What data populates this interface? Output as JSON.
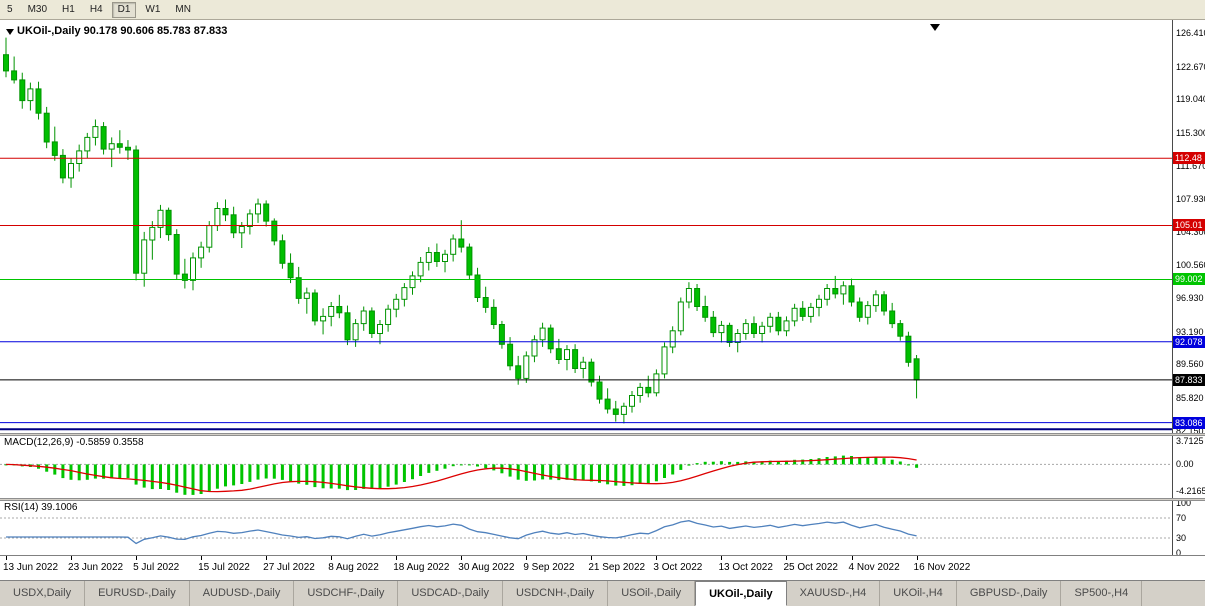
{
  "toolbar": {
    "buttons": [
      "5",
      "M30",
      "H1",
      "H4",
      "D1",
      "W1",
      "MN"
    ],
    "active": "D1"
  },
  "chart": {
    "title_text": "UKOil-,Daily  90.178 90.606 85.783 87.833",
    "symbol": "UKOil-,Daily"
  },
  "indicators": {
    "macd_label": "MACD(12,26,9) -0.5859 0.3558",
    "rsi_label": "RSI(14) 39.1006"
  },
  "colors": {
    "candle_up_fill": "#ffffff",
    "candle_down_fill": "#00bf00",
    "candle_border": "#009300",
    "macd_histogram": "#00c400",
    "macd_signal": "#dd0000",
    "rsi_line": "#4f81bd",
    "level_dotted": "#a8a8a8"
  },
  "chart_data": {
    "type": "candlestick",
    "symbol": "UKOil-,Daily",
    "last_ohlc": {
      "open": 90.178,
      "high": 90.606,
      "low": 85.783,
      "close": 87.833
    },
    "y_domain": [
      81.93,
      127.86
    ],
    "y_axis_ticks": [
      "126.410",
      "122.670",
      "119.040",
      "115.300",
      "111.670",
      "107.930",
      "104.300",
      "100.560",
      "96.930",
      "93.190",
      "89.560",
      "85.820",
      "82.150"
    ],
    "hlines": [
      {
        "price": 112.48,
        "label": "112.48",
        "color": "#d40000",
        "badge": true,
        "width": 1
      },
      {
        "price": 105.01,
        "label": "105.01",
        "color": "#d40000",
        "badge": true,
        "width": 1
      },
      {
        "price": 99.002,
        "label": "99.002",
        "color": "#00c400",
        "badge": true,
        "width": 1
      },
      {
        "price": 92.078,
        "label": "92.078",
        "color": "#0000dd",
        "badge": true,
        "width": 1
      },
      {
        "price": 87.833,
        "label": "87.833",
        "color": "#000000",
        "badge": true,
        "width": 1
      },
      {
        "price": 83.086,
        "label": "83.086",
        "color": "#0000dd",
        "badge": true,
        "width": 1
      },
      {
        "price": 82.35,
        "label": "",
        "color": "#000080",
        "badge": false,
        "width": 2
      }
    ],
    "candles": [
      [
        124.0,
        125.9,
        121.5,
        122.2
      ],
      [
        122.2,
        123.8,
        120.8,
        121.2
      ],
      [
        121.2,
        122.0,
        118.0,
        118.9
      ],
      [
        118.9,
        120.9,
        117.8,
        120.2
      ],
      [
        120.2,
        121.0,
        116.8,
        117.5
      ],
      [
        117.5,
        118.2,
        113.6,
        114.3
      ],
      [
        114.3,
        116.0,
        112.2,
        112.8
      ],
      [
        112.8,
        113.5,
        109.7,
        110.3
      ],
      [
        110.3,
        112.5,
        109.2,
        111.9
      ],
      [
        111.9,
        114.0,
        111.0,
        113.3
      ],
      [
        113.3,
        115.3,
        112.5,
        114.8
      ],
      [
        114.8,
        116.8,
        113.9,
        116.0
      ],
      [
        116.0,
        116.5,
        112.9,
        113.5
      ],
      [
        113.5,
        114.8,
        111.5,
        114.1
      ],
      [
        114.1,
        115.6,
        113.0,
        113.7
      ],
      [
        113.7,
        114.5,
        112.3,
        113.4
      ],
      [
        113.4,
        113.9,
        98.9,
        99.7
      ],
      [
        99.7,
        104.3,
        98.2,
        103.4
      ],
      [
        103.4,
        105.5,
        101.2,
        104.8
      ],
      [
        104.8,
        107.3,
        103.6,
        106.7
      ],
      [
        106.7,
        107.0,
        103.3,
        104.0
      ],
      [
        104.0,
        104.6,
        99.0,
        99.6
      ],
      [
        99.6,
        101.3,
        98.0,
        98.9
      ],
      [
        98.9,
        102.0,
        97.8,
        101.4
      ],
      [
        101.4,
        103.2,
        100.3,
        102.6
      ],
      [
        102.6,
        105.5,
        102.0,
        105.0
      ],
      [
        105.0,
        107.6,
        104.4,
        106.9
      ],
      [
        106.9,
        107.9,
        105.5,
        106.2
      ],
      [
        106.2,
        107.1,
        103.6,
        104.2
      ],
      [
        104.2,
        105.4,
        102.5,
        104.9
      ],
      [
        104.9,
        106.8,
        104.0,
        106.3
      ],
      [
        106.3,
        108.0,
        105.3,
        107.4
      ],
      [
        107.4,
        107.8,
        104.9,
        105.5
      ],
      [
        105.5,
        105.8,
        102.8,
        103.3
      ],
      [
        103.3,
        104.0,
        100.2,
        100.8
      ],
      [
        100.8,
        101.9,
        98.6,
        99.2
      ],
      [
        99.2,
        100.4,
        96.3,
        96.9
      ],
      [
        96.9,
        98.1,
        95.2,
        97.5
      ],
      [
        97.5,
        97.9,
        93.9,
        94.4
      ],
      [
        94.4,
        95.8,
        92.9,
        94.9
      ],
      [
        94.9,
        96.5,
        93.8,
        96.0
      ],
      [
        96.0,
        97.3,
        94.7,
        95.3
      ],
      [
        95.3,
        96.1,
        91.7,
        92.3
      ],
      [
        92.3,
        94.6,
        91.5,
        94.1
      ],
      [
        94.1,
        96.0,
        93.3,
        95.5
      ],
      [
        95.5,
        95.9,
        92.5,
        93.0
      ],
      [
        93.0,
        94.5,
        91.8,
        94.0
      ],
      [
        94.0,
        96.2,
        93.2,
        95.7
      ],
      [
        95.7,
        97.4,
        94.8,
        96.8
      ],
      [
        96.8,
        98.6,
        96.0,
        98.1
      ],
      [
        98.1,
        99.9,
        97.3,
        99.4
      ],
      [
        99.4,
        101.5,
        98.7,
        100.9
      ],
      [
        100.9,
        102.6,
        100.0,
        102.0
      ],
      [
        102.0,
        103.0,
        100.4,
        101.0
      ],
      [
        101.0,
        102.3,
        99.8,
        101.8
      ],
      [
        101.8,
        104.0,
        101.0,
        103.5
      ],
      [
        103.5,
        105.6,
        102.0,
        102.6
      ],
      [
        102.6,
        103.0,
        99.0,
        99.5
      ],
      [
        99.5,
        100.3,
        96.5,
        97.0
      ],
      [
        97.0,
        98.2,
        95.3,
        95.9
      ],
      [
        95.9,
        96.8,
        93.5,
        94.0
      ],
      [
        94.0,
        94.4,
        91.3,
        91.8
      ],
      [
        91.8,
        92.6,
        88.9,
        89.4
      ],
      [
        89.4,
        90.5,
        87.3,
        88.0
      ],
      [
        88.0,
        91.0,
        87.5,
        90.5
      ],
      [
        90.5,
        92.8,
        89.8,
        92.3
      ],
      [
        92.3,
        94.2,
        91.5,
        93.6
      ],
      [
        93.6,
        94.0,
        90.8,
        91.3
      ],
      [
        91.3,
        92.4,
        89.6,
        90.1
      ],
      [
        90.1,
        91.7,
        88.9,
        91.2
      ],
      [
        91.2,
        91.8,
        88.6,
        89.1
      ],
      [
        89.1,
        90.4,
        88.0,
        89.8
      ],
      [
        89.8,
        90.2,
        87.1,
        87.6
      ],
      [
        87.6,
        88.3,
        85.2,
        85.7
      ],
      [
        85.7,
        86.9,
        84.1,
        84.6
      ],
      [
        84.6,
        85.5,
        83.2,
        84.0
      ],
      [
        84.0,
        85.3,
        83.0,
        84.9
      ],
      [
        84.9,
        86.6,
        84.2,
        86.1
      ],
      [
        86.1,
        87.5,
        85.3,
        87.0
      ],
      [
        87.0,
        88.3,
        85.9,
        86.4
      ],
      [
        86.4,
        89.0,
        86.0,
        88.5
      ],
      [
        88.5,
        92.0,
        88.0,
        91.5
      ],
      [
        91.5,
        93.8,
        90.8,
        93.3
      ],
      [
        93.3,
        97.0,
        92.8,
        96.5
      ],
      [
        96.5,
        98.7,
        95.8,
        98.0
      ],
      [
        98.0,
        98.5,
        95.5,
        96.0
      ],
      [
        96.0,
        97.2,
        94.3,
        94.8
      ],
      [
        94.8,
        95.5,
        92.6,
        93.1
      ],
      [
        93.1,
        94.4,
        92.0,
        93.9
      ],
      [
        93.9,
        94.2,
        91.5,
        92.0
      ],
      [
        92.0,
        93.5,
        90.9,
        93.0
      ],
      [
        93.0,
        94.6,
        92.3,
        94.1
      ],
      [
        94.1,
        94.9,
        92.5,
        93.0
      ],
      [
        93.0,
        94.3,
        92.0,
        93.8
      ],
      [
        93.8,
        95.3,
        93.1,
        94.8
      ],
      [
        94.8,
        95.4,
        92.8,
        93.3
      ],
      [
        93.3,
        94.9,
        92.7,
        94.4
      ],
      [
        94.4,
        96.3,
        93.8,
        95.8
      ],
      [
        95.8,
        96.6,
        94.4,
        94.9
      ],
      [
        94.9,
        96.4,
        94.2,
        95.9
      ],
      [
        95.9,
        97.3,
        94.9,
        96.8
      ],
      [
        96.8,
        98.5,
        96.1,
        98.0
      ],
      [
        98.0,
        99.4,
        96.9,
        97.4
      ],
      [
        97.4,
        98.8,
        96.2,
        98.3
      ],
      [
        98.3,
        99.1,
        96.0,
        96.5
      ],
      [
        96.5,
        97.0,
        94.3,
        94.8
      ],
      [
        94.8,
        96.6,
        94.0,
        96.1
      ],
      [
        96.1,
        97.8,
        95.4,
        97.3
      ],
      [
        97.3,
        97.7,
        95.0,
        95.5
      ],
      [
        95.5,
        96.4,
        93.6,
        94.1
      ],
      [
        94.1,
        94.5,
        92.2,
        92.7
      ],
      [
        92.7,
        93.2,
        89.3,
        89.8
      ],
      [
        90.178,
        90.606,
        85.783,
        87.833
      ]
    ],
    "macd": {
      "params": "12,26,9",
      "value": -0.5859,
      "signal": 0.3558,
      "axis_ticks": [
        {
          "v": 3.7125,
          "t": "3.7125"
        },
        {
          "v": 0,
          "t": "0.00"
        },
        {
          "v": -4.2165,
          "t": "-4.2165"
        }
      ],
      "range": [
        4.5,
        -5.33
      ]
    },
    "rsi": {
      "params": "14",
      "value": 39.1006,
      "axis_ticks": [
        {
          "v": 100,
          "t": "100"
        },
        {
          "v": 70,
          "t": "70"
        },
        {
          "v": 30,
          "t": "30"
        },
        {
          "v": 0,
          "t": "0"
        }
      ],
      "levels": [
        70,
        30
      ]
    }
  },
  "x_axis": {
    "step": 8,
    "labels": [
      "13 Jun 2022",
      "23 Jun 2022",
      "5 Jul 2022",
      "15 Jul 2022",
      "27 Jul 2022",
      "8 Aug 2022",
      "18 Aug 2022",
      "30 Aug 2022",
      "9 Sep 2022",
      "21 Sep 2022",
      "3 Oct 2022",
      "13 Oct 2022",
      "25 Oct 2022",
      "4 Nov 2022",
      "16 Nov 2022"
    ]
  },
  "bottom_tabs": {
    "active": "UKOil-,Daily",
    "tabs": [
      "USDX,Daily",
      "EURUSD-,Daily",
      "AUDUSD-,Daily",
      "USDCHF-,Daily",
      "USDCAD-,Daily",
      "USDCNH-,Daily",
      "USOil-,Daily",
      "UKOil-,Daily",
      "XAUUSD-,H4",
      "UKOil-,H4",
      "GBPUSD-,Daily",
      "SP500-,H4"
    ]
  }
}
